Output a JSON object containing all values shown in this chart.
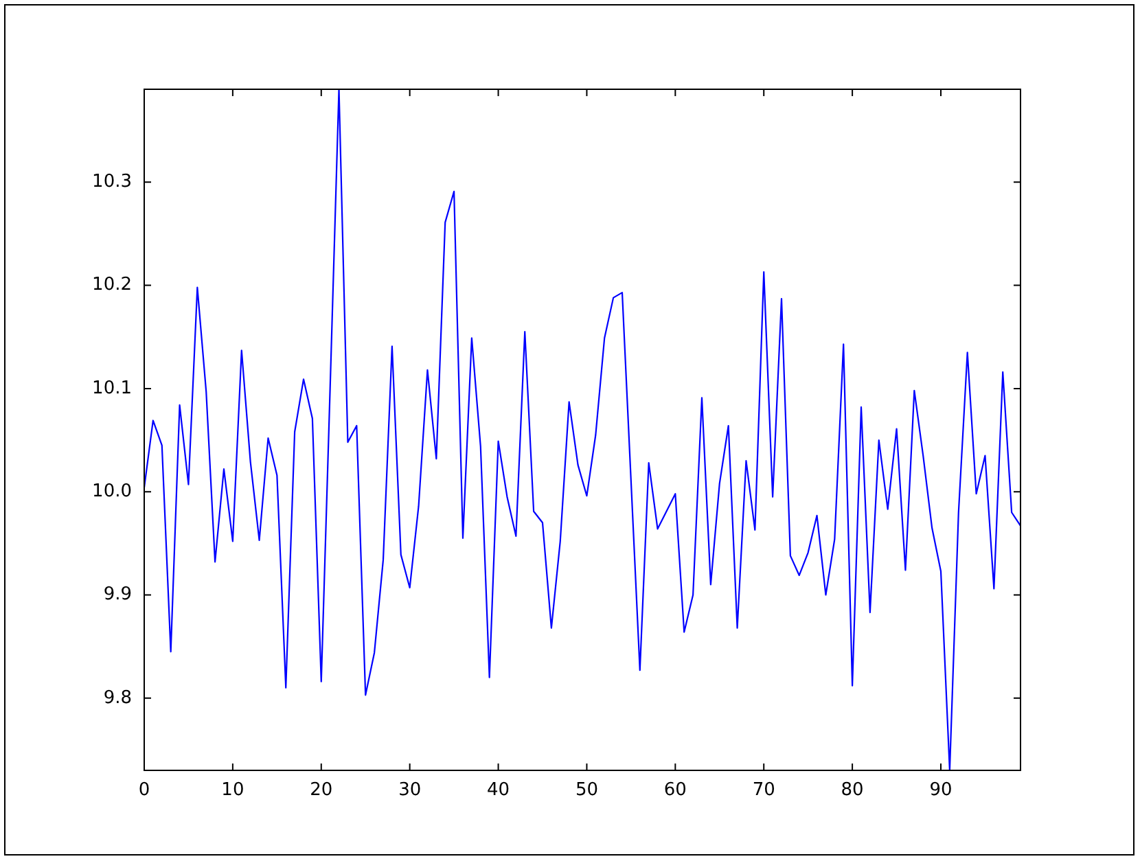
{
  "chart_data": {
    "type": "line",
    "x": [
      0,
      1,
      2,
      3,
      4,
      5,
      6,
      7,
      8,
      9,
      10,
      11,
      12,
      13,
      14,
      15,
      16,
      17,
      18,
      19,
      20,
      21,
      22,
      23,
      24,
      25,
      26,
      27,
      28,
      29,
      30,
      31,
      32,
      33,
      34,
      35,
      36,
      37,
      38,
      39,
      40,
      41,
      42,
      43,
      44,
      45,
      46,
      47,
      48,
      49,
      50,
      51,
      52,
      53,
      54,
      55,
      56,
      57,
      58,
      59,
      60,
      61,
      62,
      63,
      64,
      65,
      66,
      67,
      68,
      69,
      70,
      71,
      72,
      73,
      74,
      75,
      76,
      77,
      78,
      79,
      80,
      81,
      82,
      83,
      84,
      85,
      86,
      87,
      88,
      89,
      90,
      91,
      92,
      93,
      94,
      95,
      96,
      97,
      98,
      99
    ],
    "values": [
      10.004,
      10.069,
      10.045,
      9.845,
      10.084,
      10.007,
      10.198,
      10.097,
      9.932,
      10.022,
      9.952,
      10.137,
      10.029,
      9.953,
      10.052,
      10.016,
      9.81,
      10.058,
      10.109,
      10.071,
      9.816,
      10.1,
      10.39,
      10.048,
      10.064,
      9.803,
      9.844,
      9.934,
      10.141,
      9.939,
      9.907,
      9.986,
      10.118,
      10.032,
      10.261,
      10.291,
      9.955,
      10.149,
      10.044,
      9.82,
      10.049,
      9.995,
      9.957,
      10.155,
      9.981,
      9.97,
      9.868,
      9.952,
      10.087,
      10.026,
      9.996,
      10.055,
      10.149,
      10.188,
      10.193,
      10.01,
      9.827,
      10.028,
      9.964,
      9.981,
      9.998,
      9.864,
      9.9,
      10.091,
      9.91,
      10.008,
      10.064,
      9.868,
      10.03,
      9.963,
      10.213,
      9.995,
      10.187,
      9.938,
      9.919,
      9.941,
      9.977,
      9.9,
      9.954,
      10.143,
      9.812,
      10.082,
      9.883,
      10.05,
      9.983,
      10.061,
      9.924,
      10.098,
      10.035,
      9.965,
      9.923,
      9.73,
      9.98,
      10.135,
      9.998,
      10.035,
      9.906,
      10.116,
      9.98,
      9.967
    ],
    "color": "#0000ff",
    "marker": "none",
    "line_style": "solid",
    "xlim": [
      0,
      99
    ],
    "xticks": [
      0,
      10,
      20,
      30,
      40,
      50,
      60,
      70,
      80,
      90
    ],
    "ylim": [
      9.73,
      10.39
    ],
    "yticks": [
      9.8,
      9.9,
      {
        "value": 10,
        "label": "10.0"
      },
      10.1,
      10.2,
      10.3
    ]
  }
}
